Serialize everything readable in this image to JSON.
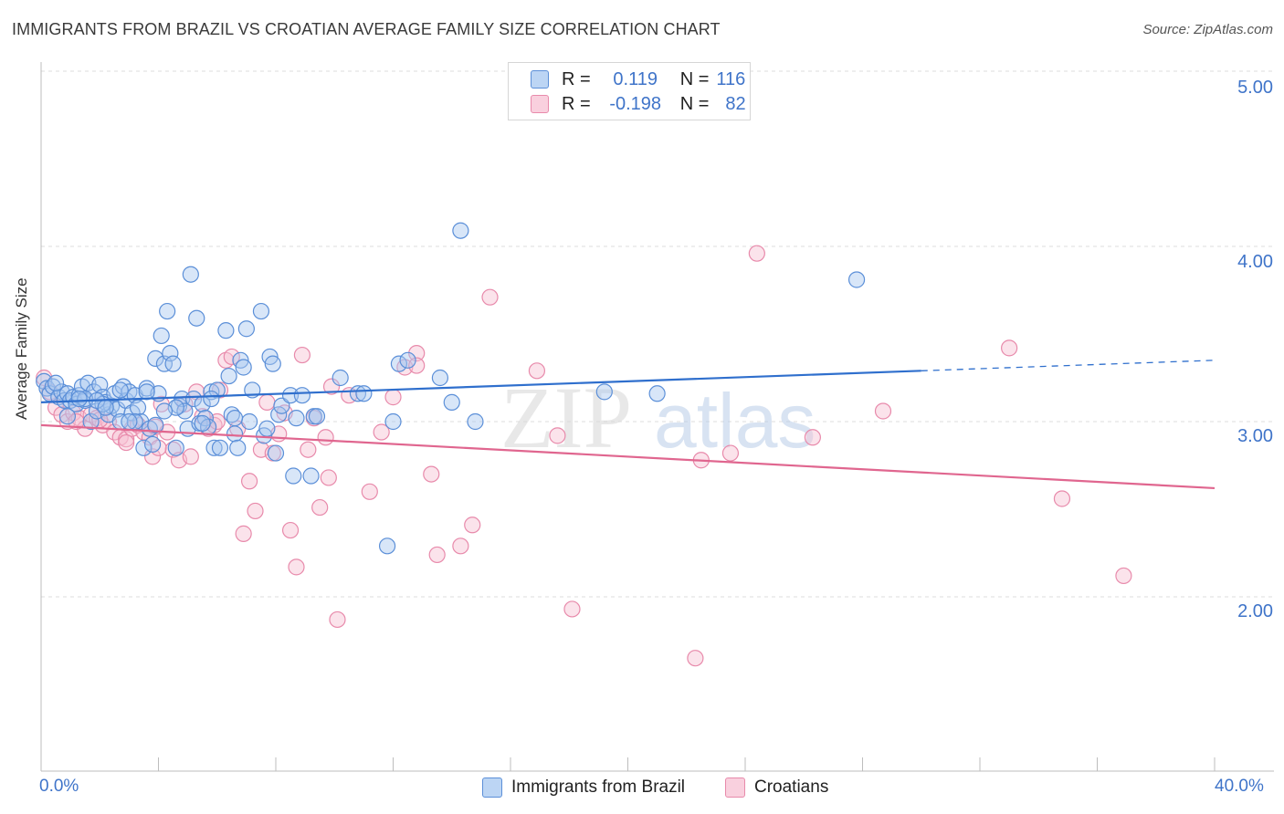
{
  "title": "IMMIGRANTS FROM BRAZIL VS CROATIAN AVERAGE FAMILY SIZE CORRELATION CHART",
  "source": "Source: ZipAtlas.com",
  "watermark": {
    "zip": "ZIP",
    "atlas": "atlas"
  },
  "colors": {
    "blue_fill": "#a9c8f0",
    "blue_stroke": "#5b8fd8",
    "blue_line": "#2f6fcd",
    "pink_fill": "#f6c0d2",
    "pink_stroke": "#e88aab",
    "pink_line": "#e0668f",
    "axis_text": "#3f74c9",
    "grid": "#dcdcdc"
  },
  "legend": {
    "rows": [
      {
        "r_label": "R =",
        "r_value": "0.119",
        "n_label": "N =",
        "n_value": "116"
      },
      {
        "r_label": "R =",
        "r_value": "-0.198",
        "n_label": "N =",
        "n_value": "82"
      }
    ]
  },
  "chart_data": {
    "type": "scatter",
    "title": "IMMIGRANTS FROM BRAZIL VS CROATIAN AVERAGE FAMILY SIZE CORRELATION CHART",
    "xlabel": "",
    "ylabel": "Average Family Size",
    "xlim": [
      0,
      40
    ],
    "ylim": [
      1.0,
      5.1
    ],
    "x_tick_labels": [
      "0.0%",
      "40.0%"
    ],
    "y_ticks": [
      2,
      3,
      4,
      5
    ],
    "y_tick_labels": [
      "2.00",
      "3.00",
      "4.00",
      "5.00"
    ],
    "legend_position": "bottom-center",
    "series": [
      {
        "name": "Immigrants from Brazil",
        "color": "#a9c8f0",
        "trend": {
          "x": [
            0,
            30
          ],
          "y": [
            3.11,
            3.29
          ],
          "dashed_to_x": 40,
          "dashed_to_y": 3.35
        },
        "points": [
          [
            0.1,
            3.23
          ],
          [
            0.2,
            3.19
          ],
          [
            0.3,
            3.16
          ],
          [
            0.4,
            3.2
          ],
          [
            0.6,
            3.14
          ],
          [
            0.7,
            3.17
          ],
          [
            0.8,
            3.12
          ],
          [
            0.9,
            3.16
          ],
          [
            1.0,
            3.12
          ],
          [
            1.1,
            3.14
          ],
          [
            1.2,
            3.1
          ],
          [
            1.3,
            3.15
          ],
          [
            1.4,
            3.2
          ],
          [
            1.5,
            3.12
          ],
          [
            1.6,
            3.22
          ],
          [
            1.7,
            3.0
          ],
          [
            1.8,
            3.17
          ],
          [
            1.9,
            3.06
          ],
          [
            2.0,
            3.21
          ],
          [
            2.1,
            3.14
          ],
          [
            2.2,
            3.11
          ],
          [
            2.3,
            3.04
          ],
          [
            2.4,
            3.09
          ],
          [
            2.5,
            3.16
          ],
          [
            2.6,
            3.07
          ],
          [
            2.7,
            3.0
          ],
          [
            2.8,
            3.2
          ],
          [
            2.9,
            3.12
          ],
          [
            3.0,
            3.17
          ],
          [
            3.1,
            3.05
          ],
          [
            3.2,
            3.15
          ],
          [
            3.3,
            3.08
          ],
          [
            3.4,
            3.0
          ],
          [
            3.5,
            2.85
          ],
          [
            3.6,
            3.19
          ],
          [
            3.7,
            2.96
          ],
          [
            3.8,
            2.87
          ],
          [
            3.9,
            3.36
          ],
          [
            4.0,
            3.16
          ],
          [
            4.1,
            3.49
          ],
          [
            4.2,
            3.33
          ],
          [
            4.3,
            3.63
          ],
          [
            4.4,
            3.39
          ],
          [
            4.5,
            3.33
          ],
          [
            4.6,
            2.85
          ],
          [
            4.7,
            3.09
          ],
          [
            4.8,
            3.13
          ],
          [
            4.9,
            3.06
          ],
          [
            5.0,
            2.96
          ],
          [
            5.1,
            3.84
          ],
          [
            5.2,
            3.13
          ],
          [
            5.3,
            3.59
          ],
          [
            5.4,
            2.99
          ],
          [
            5.5,
            3.1
          ],
          [
            5.6,
            3.02
          ],
          [
            5.7,
            2.97
          ],
          [
            5.8,
            3.17
          ],
          [
            5.9,
            2.85
          ],
          [
            6.0,
            3.18
          ],
          [
            6.1,
            2.85
          ],
          [
            6.3,
            3.52
          ],
          [
            6.4,
            3.26
          ],
          [
            6.5,
            3.04
          ],
          [
            6.6,
            2.93
          ],
          [
            6.7,
            2.85
          ],
          [
            6.8,
            3.35
          ],
          [
            6.9,
            3.31
          ],
          [
            7.0,
            3.53
          ],
          [
            7.1,
            3.0
          ],
          [
            7.2,
            3.18
          ],
          [
            7.5,
            3.63
          ],
          [
            7.6,
            2.92
          ],
          [
            7.7,
            2.96
          ],
          [
            7.8,
            3.37
          ],
          [
            7.9,
            3.33
          ],
          [
            8.0,
            2.82
          ],
          [
            8.1,
            3.04
          ],
          [
            8.2,
            3.09
          ],
          [
            8.5,
            3.15
          ],
          [
            8.6,
            2.69
          ],
          [
            8.9,
            3.15
          ],
          [
            9.2,
            2.69
          ],
          [
            9.3,
            3.03
          ],
          [
            10.2,
            3.25
          ],
          [
            10.8,
            3.16
          ],
          [
            11.0,
            3.16
          ],
          [
            11.8,
            2.29
          ],
          [
            12.0,
            3.0
          ],
          [
            12.2,
            3.33
          ],
          [
            12.5,
            3.35
          ],
          [
            13.6,
            3.25
          ],
          [
            14.0,
            3.11
          ],
          [
            14.3,
            4.09
          ],
          [
            14.8,
            3.0
          ],
          [
            19.2,
            3.17
          ],
          [
            21.0,
            3.16
          ],
          [
            27.8,
            3.81
          ],
          [
            1.5,
            3.13
          ],
          [
            2.7,
            3.18
          ],
          [
            3.2,
            3.0
          ],
          [
            4.6,
            3.08
          ],
          [
            5.8,
            3.13
          ],
          [
            6.6,
            3.02
          ],
          [
            8.7,
            3.02
          ],
          [
            9.4,
            3.03
          ],
          [
            3.6,
            3.17
          ],
          [
            2.1,
            3.1
          ],
          [
            1.9,
            3.12
          ],
          [
            0.9,
            3.03
          ],
          [
            3.0,
            3.0
          ],
          [
            4.2,
            3.06
          ],
          [
            5.5,
            2.99
          ],
          [
            2.2,
            3.08
          ],
          [
            3.9,
            2.98
          ],
          [
            1.3,
            3.13
          ],
          [
            0.5,
            3.22
          ]
        ]
      },
      {
        "name": "Croatians",
        "color": "#f6c0d2",
        "trend": {
          "x": [
            0,
            40
          ],
          "y": [
            2.98,
            2.62
          ]
        },
        "points": [
          [
            0.1,
            3.25
          ],
          [
            0.3,
            3.17
          ],
          [
            0.5,
            3.08
          ],
          [
            0.7,
            3.04
          ],
          [
            0.9,
            3.0
          ],
          [
            1.1,
            3.05
          ],
          [
            1.3,
            3.02
          ],
          [
            1.5,
            2.96
          ],
          [
            1.7,
            3.04
          ],
          [
            1.9,
            3.02
          ],
          [
            2.1,
            2.98
          ],
          [
            2.3,
            3.0
          ],
          [
            2.5,
            2.94
          ],
          [
            2.7,
            2.91
          ],
          [
            2.9,
            2.9
          ],
          [
            3.1,
            2.96
          ],
          [
            3.3,
            2.98
          ],
          [
            3.5,
            2.94
          ],
          [
            3.7,
            2.91
          ],
          [
            3.9,
            2.97
          ],
          [
            4.1,
            3.1
          ],
          [
            4.3,
            2.94
          ],
          [
            4.5,
            2.84
          ],
          [
            4.7,
            2.78
          ],
          [
            4.9,
            3.1
          ],
          [
            5.1,
            2.8
          ],
          [
            5.3,
            3.17
          ],
          [
            5.5,
            3.03
          ],
          [
            5.7,
            2.96
          ],
          [
            5.9,
            2.98
          ],
          [
            6.1,
            3.18
          ],
          [
            6.3,
            3.35
          ],
          [
            6.5,
            3.37
          ],
          [
            6.7,
            2.96
          ],
          [
            6.9,
            2.36
          ],
          [
            7.1,
            2.66
          ],
          [
            7.3,
            2.49
          ],
          [
            7.5,
            2.84
          ],
          [
            7.7,
            3.11
          ],
          [
            7.9,
            2.82
          ],
          [
            8.1,
            2.93
          ],
          [
            8.3,
            3.05
          ],
          [
            8.5,
            2.38
          ],
          [
            8.7,
            2.17
          ],
          [
            8.9,
            3.38
          ],
          [
            9.1,
            2.84
          ],
          [
            9.3,
            3.02
          ],
          [
            9.5,
            2.51
          ],
          [
            9.7,
            2.91
          ],
          [
            9.9,
            3.2
          ],
          [
            10.1,
            1.87
          ],
          [
            11.2,
            2.6
          ],
          [
            11.6,
            2.94
          ],
          [
            12.0,
            3.14
          ],
          [
            12.4,
            3.31
          ],
          [
            12.8,
            3.39
          ],
          [
            12.8,
            3.32
          ],
          [
            13.3,
            2.7
          ],
          [
            13.5,
            2.24
          ],
          [
            14.3,
            2.29
          ],
          [
            14.7,
            2.41
          ],
          [
            15.3,
            3.71
          ],
          [
            16.9,
            3.29
          ],
          [
            17.6,
            2.92
          ],
          [
            18.1,
            1.93
          ],
          [
            22.3,
            1.65
          ],
          [
            22.5,
            2.78
          ],
          [
            23.5,
            2.82
          ],
          [
            24.4,
            3.96
          ],
          [
            26.3,
            2.91
          ],
          [
            28.7,
            3.06
          ],
          [
            33.0,
            3.42
          ],
          [
            34.8,
            2.56
          ],
          [
            36.9,
            2.12
          ],
          [
            3.8,
            2.8
          ],
          [
            2.0,
            3.01
          ],
          [
            4.0,
            2.85
          ],
          [
            9.8,
            2.68
          ],
          [
            10.5,
            3.15
          ],
          [
            6.0,
            3.0
          ],
          [
            1.2,
            3.0
          ],
          [
            2.9,
            2.88
          ]
        ]
      }
    ]
  }
}
